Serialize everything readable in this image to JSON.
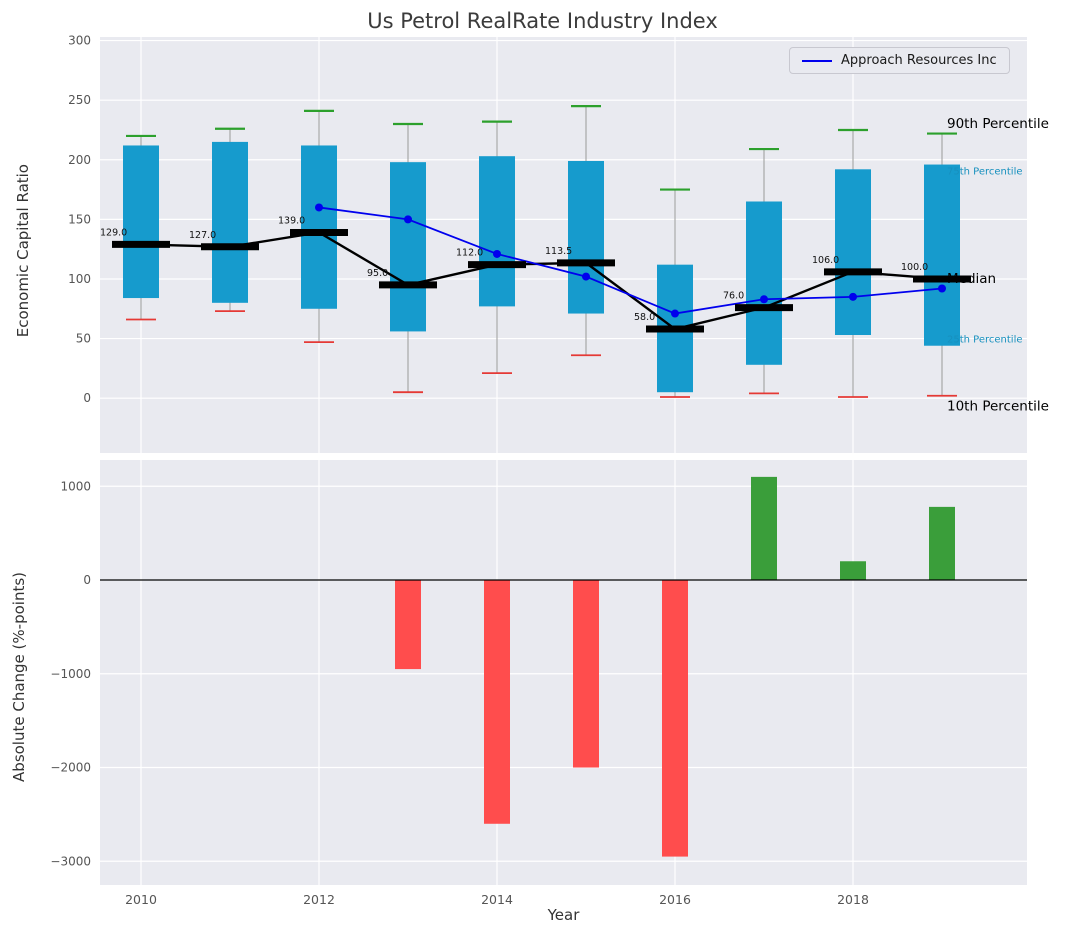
{
  "figure": {
    "background": "#ffffff",
    "plot_background": "#e9eaf0",
    "grid_color": "#ffffff"
  },
  "chart_data": [
    {
      "type": "boxplot",
      "title": "Us Petrol RealRate Industry Index",
      "ylabel": "Economic Capital Ratio",
      "ylim": [
        -46,
        303
      ],
      "yticks": [
        0,
        50,
        100,
        150,
        200,
        250,
        300
      ],
      "grid": true,
      "legend_position": "upper right",
      "categories": [
        2010,
        2011,
        2012,
        2013,
        2014,
        2015,
        2016,
        2017,
        2018,
        2019
      ],
      "series": {
        "p90": [
          220,
          226,
          241,
          230,
          232,
          245,
          175,
          209,
          225,
          222
        ],
        "p75": [
          212,
          215,
          212,
          198,
          203,
          199,
          112,
          165,
          192,
          196
        ],
        "median": [
          129,
          127,
          139,
          95,
          112,
          113.5,
          58,
          76,
          106,
          100
        ],
        "p25": [
          84,
          80,
          75,
          56,
          77,
          71,
          5,
          28,
          53,
          44
        ],
        "p10": [
          66,
          73,
          47,
          5,
          21,
          36,
          1,
          4,
          1,
          2
        ]
      },
      "median_labels": [
        "129.0",
        "127.0",
        "139.0",
        "95.0",
        "112.0",
        "113.5",
        "58.0",
        "76.0",
        "106.0",
        "100.0"
      ],
      "overlay_line": {
        "name": "Approach Resources Inc",
        "color": "#0000ee",
        "x": [
          2012,
          2013,
          2014,
          2015,
          2016,
          2017,
          2018,
          2019
        ],
        "values": [
          160,
          150,
          121,
          102,
          71,
          83,
          85,
          92
        ]
      },
      "annotations": [
        {
          "text": "90th Percentile",
          "value": 230,
          "color": "#000000",
          "size": 13.5
        },
        {
          "text": "75th Percentile",
          "value": 191,
          "color": "#1690be",
          "size": 10
        },
        {
          "text": "Median",
          "value": 100,
          "color": "#000000",
          "size": 13.5
        },
        {
          "text": "25th Percentile",
          "value": 50,
          "color": "#1690be",
          "size": 10
        },
        {
          "text": "10th Percentile",
          "value": -7,
          "color": "#000000",
          "size": 13.5
        }
      ],
      "colors": {
        "box": "#169bcd",
        "cap_top": "#2ca02c",
        "cap_bottom": "#e53935",
        "median": "#000000",
        "whisker": "#999999"
      }
    },
    {
      "type": "bar",
      "xlabel": "Year",
      "ylabel": "Absolute Change (%-points)",
      "ylim": [
        -3253,
        1280
      ],
      "yticks": [
        1000,
        0,
        -1000,
        -2000,
        -3000
      ],
      "xticks": [
        2010,
        2012,
        2014,
        2016,
        2018
      ],
      "grid": true,
      "categories": [
        2010,
        2011,
        2012,
        2013,
        2014,
        2015,
        2016,
        2017,
        2018,
        2019
      ],
      "values": [
        0,
        0,
        0,
        -950,
        -2600,
        -2000,
        -2950,
        1100,
        200,
        780
      ],
      "colors": {
        "positive": "#3a9e3a",
        "negative": "#ff4d4d"
      }
    }
  ]
}
